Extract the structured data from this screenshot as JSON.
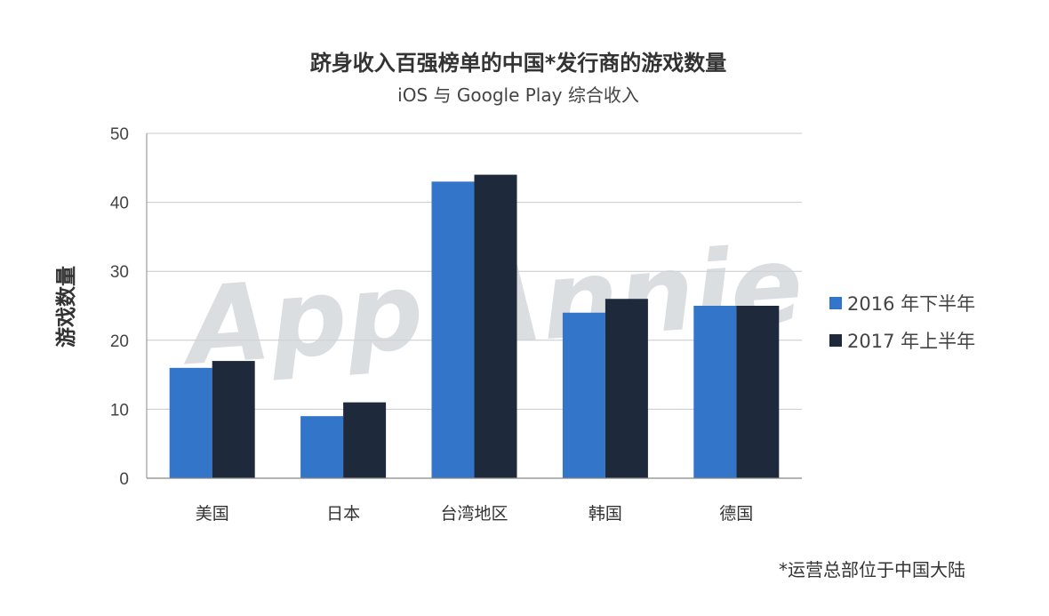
{
  "chart_data": {
    "type": "bar",
    "title": "跻身收入百强榜单的中国*发行商的游戏数量",
    "subtitle": "iOS 与 Google Play 综合收入",
    "xlabel": "",
    "ylabel": "游戏数量",
    "ylim": [
      0,
      50
    ],
    "yticks": [
      0,
      10,
      20,
      30,
      40,
      50
    ],
    "categories": [
      "美国",
      "日本",
      "台湾地区",
      "韩国",
      "德国"
    ],
    "series": [
      {
        "name": "2016 年下半年",
        "color": "#3375c9",
        "values": [
          16,
          9,
          43,
          24,
          25
        ]
      },
      {
        "name": "2017 年上半年",
        "color": "#1e2a3c",
        "values": [
          17,
          11,
          44,
          26,
          25
        ]
      }
    ],
    "grid": true,
    "legend_position": "right"
  },
  "watermark": "App Annie",
  "footnote": "*运营总部位于中国大陆"
}
